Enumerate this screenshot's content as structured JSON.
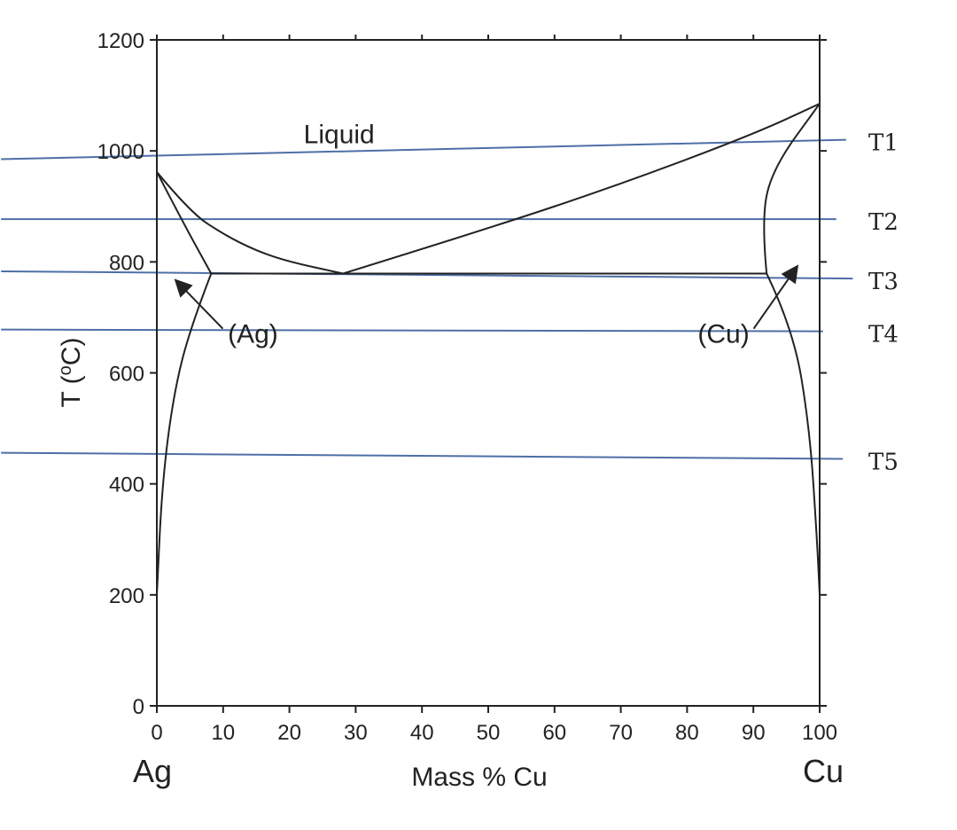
{
  "chart_data": {
    "type": "line",
    "title": "",
    "xlabel": "Mass % Cu",
    "ylabel": "T (°C)",
    "ylabel_parts": {
      "prefix": "T (",
      "superscript": "o",
      "suffix": "C)"
    },
    "xlim": [
      0,
      100
    ],
    "ylim": [
      0,
      1200
    ],
    "x_ticks": [
      0,
      10,
      20,
      30,
      40,
      50,
      60,
      70,
      80,
      90,
      100
    ],
    "y_ticks": [
      0,
      200,
      400,
      600,
      800,
      1000,
      1200
    ],
    "end_labels": {
      "left": "Ag",
      "right": "Cu"
    },
    "region_labels": [
      {
        "text": "Liquid",
        "x": 27.5,
        "y": 1030
      },
      {
        "text": "(Ag)",
        "x": 14.5,
        "y": 670,
        "arrow_to": [
          3,
          765
        ]
      },
      {
        "text": "(Cu)",
        "x": 85.5,
        "y": 670,
        "arrow_to": [
          96.5,
          790
        ]
      }
    ],
    "phase_boundaries": [
      {
        "name": "liquidus-ag",
        "points": [
          [
            0,
            962
          ],
          [
            5,
            890
          ],
          [
            10,
            850
          ],
          [
            15,
            820
          ],
          [
            20,
            800
          ],
          [
            28.1,
            779
          ]
        ],
        "color": "#222222"
      },
      {
        "name": "liquidus-cu",
        "points": [
          [
            28.1,
            779
          ],
          [
            50,
            860
          ],
          [
            70,
            940
          ],
          [
            90,
            1030
          ],
          [
            100,
            1085
          ]
        ],
        "color": "#222222"
      },
      {
        "name": "solidus-ag",
        "points": [
          [
            0,
            962
          ],
          [
            4,
            870
          ],
          [
            8.2,
            779
          ]
        ],
        "color": "#222222"
      },
      {
        "name": "solidus-cu",
        "points": [
          [
            92,
            779
          ],
          [
            91.2,
            880
          ],
          [
            93,
            970
          ],
          [
            100,
            1085
          ]
        ],
        "color": "#222222"
      },
      {
        "name": "eutectic-line",
        "points": [
          [
            8.2,
            779
          ],
          [
            92,
            779
          ]
        ],
        "color": "#222222"
      },
      {
        "name": "solvus-ag",
        "points": [
          [
            8.2,
            779
          ],
          [
            5,
            680
          ],
          [
            2.5,
            560
          ],
          [
            0.8,
            400
          ],
          [
            0,
            200
          ]
        ],
        "color": "#222222"
      },
      {
        "name": "solvus-cu",
        "points": [
          [
            92,
            779
          ],
          [
            96,
            680
          ],
          [
            98.5,
            500
          ],
          [
            99.6,
            300
          ],
          [
            100,
            200
          ]
        ],
        "color": "#222222"
      }
    ],
    "temperature_lines": [
      {
        "name": "T1",
        "x_start": -23.5,
        "y_start": 985,
        "x_end": 104,
        "y_end": 1020,
        "color": "#4e6fa7"
      },
      {
        "name": "T2",
        "x_start": -23.5,
        "y_start": 877,
        "x_end": 102.5,
        "y_end": 877,
        "color": "#4e6fa7"
      },
      {
        "name": "T3",
        "x_start": -23.5,
        "y_start": 783,
        "x_end": 105,
        "y_end": 770,
        "color": "#4e6fa7"
      },
      {
        "name": "T4",
        "x_start": -23.5,
        "y_start": 678,
        "x_end": 100.5,
        "y_end": 675,
        "color": "#4e6fa7"
      },
      {
        "name": "T5",
        "x_start": -23.5,
        "y_start": 456,
        "x_end": 103.5,
        "y_end": 445,
        "color": "#4e6fa7"
      }
    ],
    "grid": false
  },
  "colors": {
    "axes": "#222222",
    "boundary": "#222222",
    "tline": "#4e6fa7",
    "background": "#ffffff"
  }
}
